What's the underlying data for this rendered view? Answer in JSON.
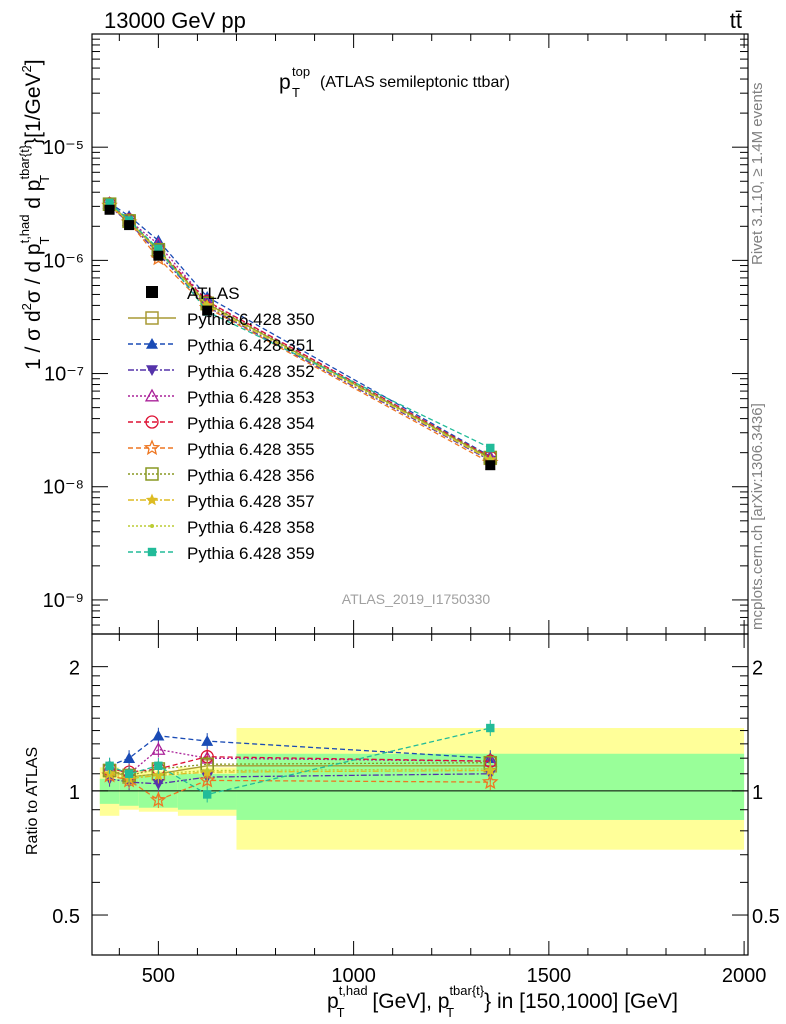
{
  "header": {
    "energy_label": "13000 GeV pp",
    "process_label": "tt̄"
  },
  "side_labels": {
    "rivet": "Rivet 3.1.10, ≥ 1.4M events",
    "mcplots": "mcplots.cern.ch [arXiv:1306.3436]"
  },
  "plot": {
    "title_main": "p",
    "title_sup": "top",
    "title_sub": "T",
    "title_suffix": "(ATLAS semileptonic ttbar)",
    "analysis_id": "ATLAS_2019_I1750330",
    "ylabel": "1 / σ d²σ / d p_T^{t,had} d p_T^{tbar{t}} [1/GeV²]",
    "ratio_ylabel": "Ratio to ATLAS",
    "xlabel": "p_T^{t,had} [GeV], p_T^{tbar{t}} in [150,1000] [GeV]"
  },
  "chart_data": {
    "type": "line",
    "x_scale": "linear",
    "y_scale": "log",
    "xlim": [
      330,
      2010
    ],
    "ylim": [
      5e-10,
      0.0001
    ],
    "ratio_ylim": [
      0.4,
      2.4
    ],
    "x_ticks": [
      "500",
      "1000",
      "1500",
      "2000"
    ],
    "y_ticks": [
      "10⁻⁹",
      "10⁻⁸",
      "10⁻⁷",
      "10⁻⁶",
      "10⁻⁵"
    ],
    "ratio_ticks": [
      "0.5",
      "1",
      "2"
    ],
    "legend_position": "middle-left",
    "x": [
      375,
      425,
      500,
      625,
      1350
    ],
    "data": {
      "name": "ATLAS",
      "values": [
        2.8e-06,
        2.05e-06,
        1.1e-06,
        3.6e-07,
        1.55e-08
      ],
      "band_edges": [
        350,
        400,
        450,
        550,
        700,
        2000
      ],
      "band_inner": [
        [
          0.93,
          1.07
        ],
        [
          0.92,
          1.08
        ],
        [
          0.91,
          1.09
        ],
        [
          0.9,
          1.1
        ],
        [
          0.85,
          1.23
        ]
      ],
      "band_outer": [
        [
          0.87,
          1.14
        ],
        [
          0.9,
          1.12
        ],
        [
          0.89,
          1.12
        ],
        [
          0.87,
          1.14
        ],
        [
          0.72,
          1.42
        ]
      ]
    },
    "series": [
      {
        "name": "Pythia 6.428 350",
        "color": "#a89a35",
        "marker": "open-square",
        "dash": "",
        "ratio": [
          1.12,
          1.08,
          1.1,
          1.15,
          1.15
        ]
      },
      {
        "name": "Pythia 6.428 351",
        "color": "#1a4bb5",
        "marker": "filled-triangle-up",
        "dash": "5,3",
        "ratio": [
          1.15,
          1.2,
          1.36,
          1.32,
          1.2
        ]
      },
      {
        "name": "Pythia 6.428 352",
        "color": "#5533aa",
        "marker": "filled-triangle-down",
        "dash": "6,2,2,2",
        "ratio": [
          1.07,
          1.05,
          1.04,
          1.08,
          1.1
        ]
      },
      {
        "name": "Pythia 6.428 353",
        "color": "#aa2299",
        "marker": "open-triangle-up",
        "dash": "2,2",
        "ratio": [
          1.14,
          1.1,
          1.26,
          1.2,
          1.18
        ]
      },
      {
        "name": "Pythia 6.428 354",
        "color": "#dd1133",
        "marker": "open-circle",
        "dash": "5,3",
        "ratio": [
          1.13,
          1.11,
          1.13,
          1.21,
          1.18
        ]
      },
      {
        "name": "Pythia 6.428 355",
        "color": "#ee7722",
        "marker": "open-star",
        "dash": "5,3",
        "ratio": [
          1.09,
          1.06,
          0.95,
          1.06,
          1.05
        ]
      },
      {
        "name": "Pythia 6.428 356",
        "color": "#889922",
        "marker": "open-square",
        "dash": "2,2",
        "ratio": [
          1.12,
          1.09,
          1.13,
          1.16,
          1.17
        ]
      },
      {
        "name": "Pythia 6.428 357",
        "color": "#ddbb22",
        "marker": "star",
        "dash": "6,2,2,2",
        "ratio": [
          1.1,
          1.07,
          1.09,
          1.11,
          1.12
        ]
      },
      {
        "name": "Pythia 6.428 358",
        "color": "#bbcc33",
        "marker": "dot",
        "dash": "2,2",
        "ratio": [
          1.11,
          1.08,
          1.1,
          1.12,
          1.13
        ]
      },
      {
        "name": "Pythia 6.428 359",
        "color": "#22bb99",
        "marker": "filled-square",
        "dash": "5,3",
        "ratio": [
          1.15,
          1.1,
          1.15,
          0.98,
          1.42
        ]
      }
    ]
  }
}
